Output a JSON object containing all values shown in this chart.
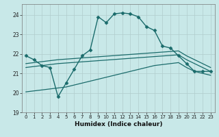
{
  "xlabel": "Humidex (Indice chaleur)",
  "ylabel": "",
  "bg_color": "#c8e8e8",
  "grid_color": "#b0cccc",
  "line_color": "#1a6b6b",
  "xlim": [
    -0.5,
    23.5
  ],
  "ylim": [
    19,
    24.55
  ],
  "yticks": [
    19,
    20,
    21,
    22,
    23,
    24
  ],
  "xticks": [
    0,
    1,
    2,
    3,
    4,
    5,
    6,
    7,
    8,
    9,
    10,
    11,
    12,
    13,
    14,
    15,
    16,
    17,
    18,
    19,
    20,
    21,
    22,
    23
  ],
  "series": [
    {
      "x": [
        0,
        1,
        2,
        3,
        4,
        5,
        6,
        7,
        8,
        9,
        10,
        11,
        12,
        13,
        14,
        15,
        16,
        17,
        18,
        19,
        20,
        21,
        22,
        23
      ],
      "y": [
        21.9,
        21.7,
        21.4,
        21.3,
        19.8,
        20.5,
        21.2,
        21.9,
        22.2,
        23.9,
        23.6,
        24.05,
        24.1,
        24.05,
        23.9,
        23.4,
        23.2,
        22.4,
        22.3,
        21.9,
        21.5,
        21.1,
        21.1,
        21.1
      ],
      "marker": "D",
      "markersize": 2.5,
      "linewidth": 1.0,
      "with_marker": true
    },
    {
      "x": [
        0,
        1,
        2,
        3,
        4,
        5,
        6,
        7,
        8,
        9,
        10,
        11,
        12,
        13,
        14,
        15,
        16,
        17,
        18,
        19,
        20,
        21,
        22,
        23
      ],
      "y": [
        21.5,
        21.55,
        21.6,
        21.65,
        21.7,
        21.73,
        21.76,
        21.79,
        21.82,
        21.85,
        21.88,
        21.91,
        21.94,
        21.97,
        22.0,
        22.03,
        22.06,
        22.09,
        22.12,
        22.15,
        21.9,
        21.7,
        21.5,
        21.3
      ],
      "marker": null,
      "markersize": 0,
      "linewidth": 0.9,
      "with_marker": false
    },
    {
      "x": [
        0,
        1,
        2,
        3,
        4,
        5,
        6,
        7,
        8,
        9,
        10,
        11,
        12,
        13,
        14,
        15,
        16,
        17,
        18,
        19,
        20,
        21,
        22,
        23
      ],
      "y": [
        21.3,
        21.35,
        21.4,
        21.45,
        21.5,
        21.53,
        21.56,
        21.59,
        21.62,
        21.65,
        21.68,
        21.71,
        21.74,
        21.77,
        21.8,
        21.83,
        21.86,
        21.89,
        21.92,
        21.95,
        21.7,
        21.5,
        21.3,
        21.1
      ],
      "marker": null,
      "markersize": 0,
      "linewidth": 0.9,
      "with_marker": false
    },
    {
      "x": [
        0,
        1,
        2,
        3,
        4,
        5,
        6,
        7,
        8,
        9,
        10,
        11,
        12,
        13,
        14,
        15,
        16,
        17,
        18,
        19,
        20,
        21,
        22,
        23
      ],
      "y": [
        20.05,
        20.1,
        20.15,
        20.2,
        20.25,
        20.3,
        20.4,
        20.5,
        20.6,
        20.7,
        20.8,
        20.9,
        21.0,
        21.1,
        21.2,
        21.3,
        21.4,
        21.45,
        21.5,
        21.55,
        21.3,
        21.1,
        21.0,
        20.9
      ],
      "marker": null,
      "markersize": 0,
      "linewidth": 0.9,
      "with_marker": false
    }
  ]
}
